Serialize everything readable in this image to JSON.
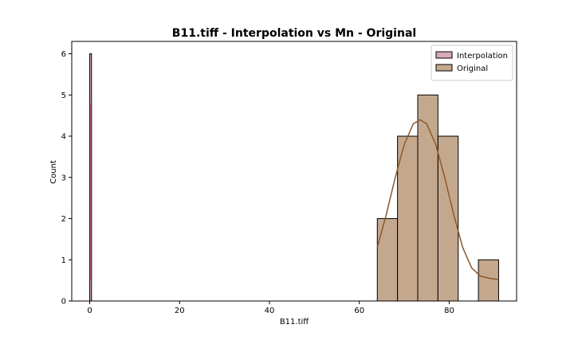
{
  "chart_data": {
    "type": "histogram",
    "title": "B11.tiff - Interpolation vs Mn - Original",
    "xlabel": "B11.tiff",
    "ylabel": "Count",
    "xlim": [
      -4,
      95
    ],
    "ylim": [
      0,
      6.3
    ],
    "xticks": [
      0,
      20,
      40,
      60,
      80
    ],
    "yticks": [
      0,
      1,
      2,
      3,
      4,
      5,
      6
    ],
    "grid": false,
    "legend_position": "top-right",
    "series": [
      {
        "name": "Interpolation",
        "color": "#d8a9bd",
        "kde_color": "#c0607e",
        "bins": [
          {
            "x0": 0.0,
            "x1": 0.4,
            "count": 6
          }
        ],
        "kde": [
          [
            0.2,
            0.5
          ],
          [
            0.2,
            4.8
          ]
        ]
      },
      {
        "name": "Original",
        "color": "#c4a88e",
        "kde_color": "#8b5a2b",
        "bins": [
          {
            "x0": 64.0,
            "x1": 68.5,
            "count": 2
          },
          {
            "x0": 68.5,
            "x1": 73.0,
            "count": 4
          },
          {
            "x0": 73.0,
            "x1": 77.5,
            "count": 5
          },
          {
            "x0": 77.5,
            "x1": 82.0,
            "count": 4
          },
          {
            "x0": 82.0,
            "x1": 86.5,
            "count": 0
          },
          {
            "x0": 86.5,
            "x1": 91.0,
            "count": 1
          }
        ],
        "kde": [
          [
            64.0,
            1.3
          ],
          [
            66.0,
            2.1
          ],
          [
            68.0,
            3.0
          ],
          [
            70.0,
            3.8
          ],
          [
            72.0,
            4.3
          ],
          [
            73.5,
            4.4
          ],
          [
            75.0,
            4.3
          ],
          [
            77.0,
            3.8
          ],
          [
            79.0,
            3.0
          ],
          [
            81.0,
            2.1
          ],
          [
            83.0,
            1.3
          ],
          [
            85.0,
            0.8
          ],
          [
            87.0,
            0.6
          ],
          [
            89.0,
            0.55
          ],
          [
            91.0,
            0.52
          ]
        ]
      }
    ]
  }
}
